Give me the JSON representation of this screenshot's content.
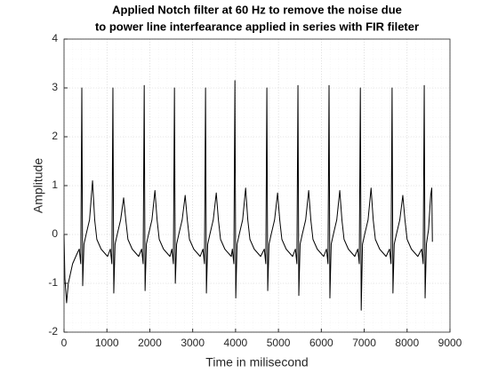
{
  "chart_data": {
    "type": "line",
    "title": [
      "Applied Notch filter at 60 Hz to remove the noise due",
      "to power line interfearance applied in series with FIR fileter"
    ],
    "x_label": "Time in milisecond",
    "y_label": "Amplitude",
    "xlim": [
      0,
      9000
    ],
    "xticks": [
      0,
      1000,
      2000,
      3000,
      4000,
      5000,
      6000,
      7000,
      8000,
      9000
    ],
    "ylim": [
      -2,
      4
    ],
    "yticks": [
      -2,
      -1,
      0,
      1,
      2,
      3,
      4
    ],
    "grid": true,
    "minor_grid": true,
    "series": [
      {
        "name": "signal",
        "color": "#000000",
        "x": [
          0,
          20,
          60,
          100,
          200,
          300,
          355,
          390,
          415,
          435,
          465,
          515,
          595,
          665,
          715,
          765,
          865,
          1015,
          1080,
          1115,
          1140,
          1160,
          1190,
          1240,
          1320,
          1390,
          1440,
          1490,
          1590,
          1740,
          1810,
          1845,
          1870,
          1890,
          1920,
          1970,
          2050,
          2120,
          2170,
          2220,
          2320,
          2470,
          2515,
          2550,
          2575,
          2595,
          2625,
          2675,
          2755,
          2825,
          2875,
          2925,
          3025,
          3175,
          3240,
          3275,
          3300,
          3320,
          3350,
          3400,
          3480,
          3550,
          3600,
          3650,
          3750,
          3900,
          3925,
          3960,
          3985,
          4005,
          4035,
          4085,
          4165,
          4235,
          4285,
          4335,
          4435,
          4585,
          4670,
          4705,
          4730,
          4750,
          4780,
          4830,
          4910,
          4980,
          5030,
          5080,
          5180,
          5330,
          5395,
          5430,
          5455,
          5475,
          5505,
          5555,
          5635,
          5705,
          5755,
          5805,
          5905,
          6055,
          6120,
          6155,
          6180,
          6200,
          6230,
          6280,
          6360,
          6430,
          6480,
          6530,
          6630,
          6780,
          6850,
          6885,
          6910,
          6930,
          6960,
          7010,
          7090,
          7160,
          7210,
          7260,
          7360,
          7510,
          7590,
          7625,
          7650,
          7670,
          7700,
          7750,
          7830,
          7900,
          7950,
          8000,
          8100,
          8250,
          8340,
          8375,
          8400,
          8420,
          8450,
          8500,
          8550,
          8575,
          8590
        ],
        "values": [
          0,
          -0.9,
          -1.4,
          -1.0,
          -0.6,
          -0.4,
          -0.3,
          -0.6,
          3.0,
          -1.05,
          -0.2,
          0.0,
          0.3,
          1.1,
          0.3,
          -0.1,
          -0.3,
          -0.45,
          -0.3,
          -0.6,
          3.0,
          -1.2,
          -0.2,
          0.0,
          0.3,
          0.75,
          0.3,
          -0.1,
          -0.3,
          -0.45,
          -0.3,
          -0.6,
          3.05,
          -1.15,
          -0.2,
          0.0,
          0.3,
          0.9,
          0.3,
          -0.1,
          -0.3,
          -0.45,
          -0.3,
          -0.6,
          3.0,
          -1.0,
          -0.2,
          0.0,
          0.3,
          0.8,
          0.3,
          -0.1,
          -0.3,
          -0.45,
          -0.3,
          -0.6,
          3.0,
          -1.2,
          -0.2,
          0.0,
          0.3,
          0.85,
          0.3,
          -0.1,
          -0.3,
          -0.45,
          -0.3,
          -0.6,
          3.15,
          -1.3,
          -0.2,
          0.0,
          0.3,
          0.95,
          0.3,
          -0.1,
          -0.3,
          -0.45,
          -0.3,
          -0.6,
          3.0,
          -1.15,
          -0.2,
          0.0,
          0.3,
          0.85,
          0.3,
          -0.1,
          -0.3,
          -0.45,
          -0.3,
          -0.6,
          3.05,
          -1.25,
          -0.2,
          0.0,
          0.3,
          0.9,
          0.3,
          -0.1,
          -0.3,
          -0.45,
          -0.3,
          -0.6,
          3.05,
          -1.3,
          -0.2,
          0.0,
          0.3,
          0.9,
          0.3,
          -0.1,
          -0.3,
          -0.45,
          -0.3,
          -0.6,
          3.0,
          -1.55,
          -0.2,
          0.0,
          0.3,
          0.95,
          0.3,
          -0.1,
          -0.3,
          -0.45,
          -0.3,
          -0.6,
          3.0,
          -1.2,
          -0.2,
          0.0,
          0.3,
          0.8,
          0.3,
          -0.1,
          -0.3,
          -0.45,
          -0.3,
          -0.6,
          3.05,
          -1.3,
          -0.2,
          0.1,
          0.8,
          0.95,
          -0.15
        ]
      }
    ]
  }
}
